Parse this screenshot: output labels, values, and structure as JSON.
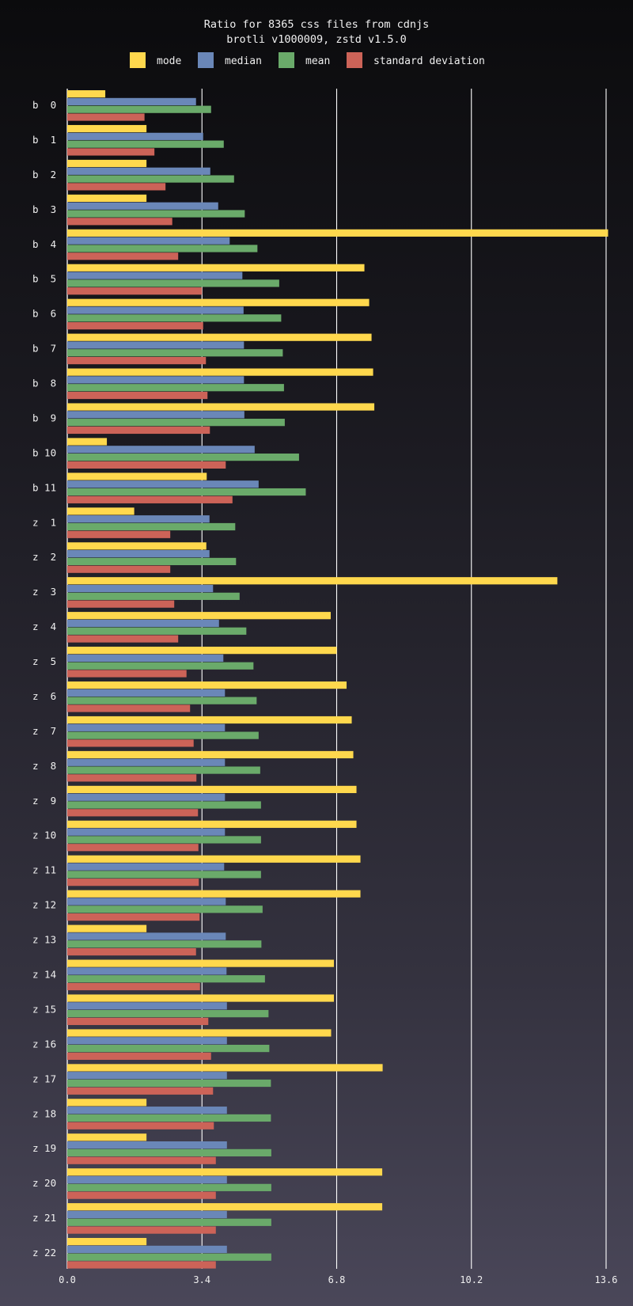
{
  "chart_data": {
    "type": "bar",
    "orientation": "horizontal",
    "title": "Ratio for 8365 css files from cdnjs",
    "subtitle": "brotli v1000009, zstd v1.5.0",
    "xlabel": "",
    "ylabel": "",
    "xlim": [
      0,
      13.6
    ],
    "ticks": [
      "0.0",
      "3.4",
      "6.8",
      "10.2",
      "13.6"
    ],
    "tick_values": [
      0,
      3.4,
      6.8,
      10.2,
      13.6
    ],
    "grid": true,
    "legend_position": "top-center",
    "categories": [
      "b  0",
      "b  1",
      "b  2",
      "b  3",
      "b  4",
      "b  5",
      "b  6",
      "b  7",
      "b  8",
      "b  9",
      "b 10",
      "b 11",
      "z  1",
      "z  2",
      "z  3",
      "z  4",
      "z  5",
      "z  6",
      "z  7",
      "z  8",
      "z  9",
      "z 10",
      "z 11",
      "z 12",
      "z 13",
      "z 14",
      "z 15",
      "z 16",
      "z 17",
      "z 18",
      "z 19",
      "z 20",
      "z 21",
      "z 22"
    ],
    "series": [
      {
        "name": "mode",
        "color": "#ffd84d",
        "values": [
          0.96,
          2.0,
          2.0,
          2.0,
          13.65,
          7.5,
          7.62,
          7.68,
          7.72,
          7.75,
          1.0,
          3.52,
          1.69,
          3.51,
          12.37,
          6.65,
          6.8,
          7.05,
          7.18,
          7.22,
          7.3,
          7.3,
          7.4,
          7.4,
          2.0,
          6.73,
          6.73,
          6.66,
          7.96,
          2.0,
          2.0,
          7.95,
          7.95,
          2.0
        ]
      },
      {
        "name": "median",
        "color": "#6a87b8",
        "values": [
          3.25,
          3.43,
          3.61,
          3.81,
          4.1,
          4.42,
          4.45,
          4.46,
          4.46,
          4.47,
          4.73,
          4.83,
          3.59,
          3.59,
          3.68,
          3.83,
          3.94,
          3.98,
          3.98,
          3.98,
          3.98,
          3.98,
          3.96,
          4.0,
          4.0,
          4.02,
          4.03,
          4.03,
          4.03,
          4.03,
          4.03,
          4.03,
          4.03,
          4.03
        ]
      },
      {
        "name": "mean",
        "color": "#6aaa6a",
        "values": [
          3.63,
          3.95,
          4.21,
          4.48,
          4.8,
          5.35,
          5.4,
          5.44,
          5.47,
          5.49,
          5.85,
          6.02,
          4.24,
          4.26,
          4.35,
          4.52,
          4.7,
          4.78,
          4.83,
          4.87,
          4.89,
          4.89,
          4.89,
          4.93,
          4.9,
          4.99,
          5.08,
          5.1,
          5.14,
          5.14,
          5.15,
          5.15,
          5.15,
          5.15
        ]
      },
      {
        "name": "standard deviation",
        "color": "#cc6358",
        "values": [
          1.95,
          2.2,
          2.48,
          2.65,
          2.8,
          3.4,
          3.43,
          3.5,
          3.54,
          3.6,
          4.0,
          4.17,
          2.6,
          2.6,
          2.7,
          2.8,
          3.01,
          3.1,
          3.19,
          3.26,
          3.3,
          3.31,
          3.32,
          3.34,
          3.25,
          3.35,
          3.56,
          3.63,
          3.68,
          3.7,
          3.75,
          3.75,
          3.75,
          3.75
        ]
      }
    ]
  }
}
